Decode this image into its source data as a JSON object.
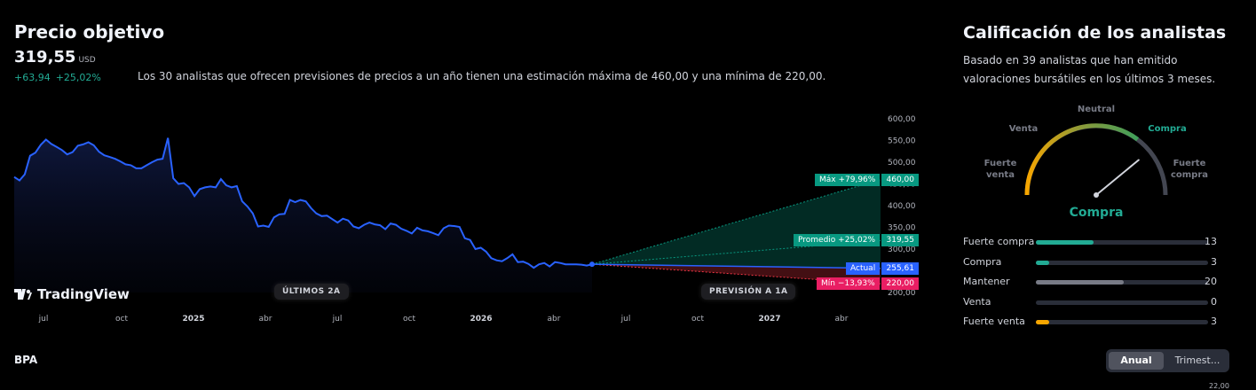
{
  "header": {
    "title": "Precio objetivo",
    "price": "319,55",
    "currency": "USD",
    "change_abs": "+63,94",
    "change_pct": "+25,02%",
    "description": "Los 30 analistas que ofrecen previsiones de precios a un año tienen una estimación máxima de 460,00 y una mínima de 220,00."
  },
  "chart_data": {
    "type": "line",
    "x_ticks": [
      "jul",
      "oct",
      "2025",
      "abr",
      "jul",
      "oct",
      "2026",
      "abr",
      "jul",
      "oct",
      "2027",
      "abr"
    ],
    "y_ticks": [
      "600,00",
      "550,00",
      "500,00",
      "450,00",
      "400,00",
      "350,00",
      "300,00",
      "250,00",
      "200,00"
    ],
    "ylim": [
      200,
      600
    ],
    "history": [
      466,
      458,
      472,
      515,
      522,
      540,
      552,
      542,
      535,
      528,
      518,
      523,
      538,
      541,
      546,
      539,
      524,
      516,
      512,
      508,
      502,
      495,
      493,
      486,
      486,
      493,
      500,
      506,
      508,
      556,
      463,
      450,
      452,
      442,
      422,
      438,
      442,
      444,
      442,
      461,
      447,
      442,
      445,
      410,
      398,
      382,
      352,
      354,
      351,
      373,
      380,
      381,
      413,
      408,
      413,
      410,
      394,
      382,
      376,
      377,
      369,
      361,
      370,
      366,
      352,
      348,
      356,
      361,
      357,
      355,
      346,
      359,
      356,
      347,
      342,
      336,
      349,
      343,
      341,
      337,
      332,
      348,
      354,
      353,
      351,
      325,
      321,
      300,
      303,
      294,
      279,
      274,
      272,
      279,
      288,
      270,
      271,
      266,
      257,
      265,
      268,
      260,
      270,
      268,
      265,
      265,
      265,
      264,
      262,
      265
    ],
    "current": 255.61,
    "forecast": {
      "max": {
        "label": "Máx +79,96%",
        "value": 460.0,
        "value_label": "460,00",
        "color": "#089981"
      },
      "avg": {
        "label": "Promedio +25,02%",
        "value": 319.55,
        "value_label": "319,55",
        "color": "#089981"
      },
      "current": {
        "label": "Actual",
        "value": 255.61,
        "value_label": "255,61",
        "color": "#2962ff"
      },
      "min": {
        "label": "Mín −13,93%",
        "value": 220.0,
        "value_label": "220,00",
        "color": "#f23645"
      }
    },
    "period_labels": {
      "past": "ÚLTIMOS 2A",
      "future": "PREVISIÓN A 1A"
    },
    "line_color": "#2962ff"
  },
  "brand": {
    "logo_text": "TradingView"
  },
  "bpa": {
    "label": "BPA",
    "toggle_active": "Anual",
    "toggle_other": "Trimest...",
    "corner_value": "22,00"
  },
  "ratings": {
    "title": "Calificación de los analistas",
    "description": "Basado en 39 analistas que han emitido valoraciones bursátiles en los últimos 3 meses.",
    "gauge": {
      "labels": {
        "strong_sell": "Fuerte venta",
        "sell": "Venta",
        "neutral": "Neutral",
        "buy": "Compra",
        "strong_buy": "Fuerte compra"
      },
      "result": "Compra",
      "needle_fraction": 0.78
    },
    "rows": [
      {
        "label": "Fuerte compra",
        "count": 13,
        "color": "#22ab94"
      },
      {
        "label": "Compra",
        "count": 3,
        "color": "#22ab94"
      },
      {
        "label": "Mantener",
        "count": 20,
        "color": "#787b86"
      },
      {
        "label": "Venta",
        "count": 0,
        "color": "#f7a600"
      },
      {
        "label": "Fuerte venta",
        "count": 3,
        "color": "#f7a600"
      }
    ],
    "total": 39
  }
}
